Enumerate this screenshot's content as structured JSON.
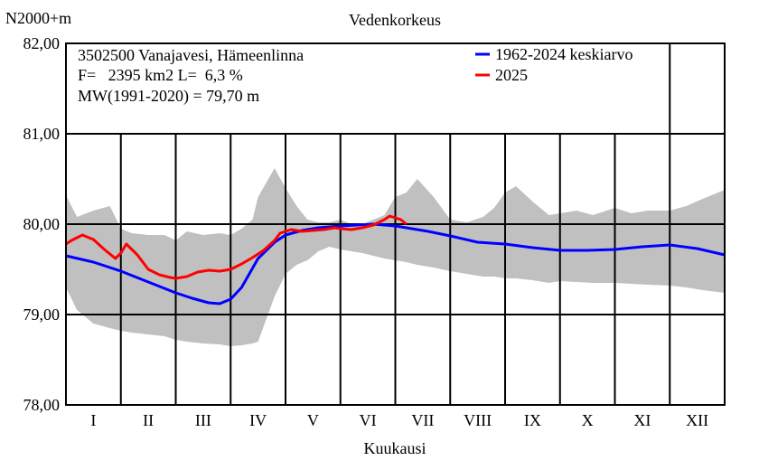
{
  "chart_data": {
    "type": "area",
    "title": "Vedenkorkeus",
    "ylabel": "N2000+m",
    "xlabel": "Kuukausi",
    "ylim": [
      78,
      82
    ],
    "yticks": [
      "78,00",
      "79,00",
      "80,00",
      "81,00",
      "82,00"
    ],
    "ytick_values": [
      78,
      79,
      80,
      81,
      82
    ],
    "categories": [
      "I",
      "II",
      "III",
      "IV",
      "V",
      "VI",
      "VII",
      "VIII",
      "IX",
      "X",
      "XI",
      "XII"
    ],
    "info_lines": [
      "3502500 Vanajavesi, Hämeenlinna",
      "F=   2395 km2 L=  6,3 %",
      "MW(1991-2020) = 79,70 m"
    ],
    "range_band": {
      "color": "#c0c0c0",
      "x": [
        0,
        0.2,
        0.5,
        0.8,
        1,
        1.2,
        1.5,
        1.8,
        2.0,
        2.2,
        2.5,
        2.8,
        3.0,
        3.2,
        3.4,
        3.5,
        3.8,
        4.0,
        4.2,
        4.4,
        4.6,
        4.8,
        5.0,
        5.2,
        5.4,
        5.6,
        5.8,
        6.0,
        6.2,
        6.4,
        6.7,
        7.0,
        7.3,
        7.6,
        7.8,
        8.0,
        8.2,
        8.5,
        8.8,
        9.0,
        9.3,
        9.6,
        10.0,
        10.3,
        10.6,
        11.0,
        11.3,
        11.6,
        12.0
      ],
      "max": [
        80.32,
        80.08,
        80.15,
        80.2,
        79.95,
        79.9,
        79.88,
        79.88,
        79.82,
        79.92,
        79.88,
        79.9,
        79.88,
        79.95,
        80.05,
        80.3,
        80.62,
        80.4,
        80.2,
        80.05,
        80.02,
        80.02,
        80.05,
        80.0,
        80.0,
        80.05,
        80.1,
        80.3,
        80.35,
        80.5,
        80.3,
        80.05,
        80.02,
        80.08,
        80.18,
        80.35,
        80.42,
        80.25,
        80.1,
        80.12,
        80.15,
        80.1,
        80.18,
        80.12,
        80.15,
        80.15,
        80.2,
        80.28,
        80.38
      ],
      "min": [
        79.3,
        79.05,
        78.9,
        78.85,
        78.82,
        78.8,
        78.78,
        78.76,
        78.72,
        78.7,
        78.68,
        78.67,
        78.65,
        78.66,
        78.68,
        78.7,
        79.2,
        79.45,
        79.55,
        79.6,
        79.7,
        79.75,
        79.72,
        79.7,
        79.68,
        79.65,
        79.62,
        79.6,
        79.58,
        79.55,
        79.52,
        79.48,
        79.45,
        79.42,
        79.42,
        79.4,
        79.4,
        79.38,
        79.35,
        79.37,
        79.36,
        79.35,
        79.35,
        79.34,
        79.33,
        79.32,
        79.3,
        79.27,
        79.24
      ]
    },
    "series": [
      {
        "name": "1962-2024 keskiarvo",
        "color": "#0000ff",
        "x": [
          0,
          0.5,
          1.0,
          1.5,
          2.0,
          2.3,
          2.6,
          2.8,
          3.0,
          3.2,
          3.5,
          3.8,
          4.0,
          4.3,
          4.6,
          5.0,
          5.3,
          5.6,
          6.0,
          6.3,
          6.6,
          7.0,
          7.5,
          8.0,
          8.5,
          9.0,
          9.5,
          10.0,
          10.5,
          11.0,
          11.5,
          12.0
        ],
        "values": [
          79.65,
          79.58,
          79.48,
          79.36,
          79.24,
          79.18,
          79.13,
          79.12,
          79.17,
          79.3,
          79.62,
          79.8,
          79.88,
          79.93,
          79.96,
          79.98,
          79.99,
          80.0,
          79.98,
          79.95,
          79.92,
          79.87,
          79.8,
          79.78,
          79.74,
          79.71,
          79.71,
          79.72,
          79.75,
          79.77,
          79.73,
          79.66
        ]
      },
      {
        "name": "2025",
        "color": "#ff0000",
        "x": [
          0,
          0.1,
          0.3,
          0.5,
          0.7,
          0.9,
          1.0,
          1.1,
          1.3,
          1.5,
          1.7,
          1.9,
          2.0,
          2.2,
          2.4,
          2.6,
          2.8,
          3.0,
          3.2,
          3.4,
          3.6,
          3.8,
          3.9,
          4.1,
          4.3,
          4.5,
          4.7,
          4.9,
          5.0,
          5.2,
          5.4,
          5.6,
          5.7,
          5.8,
          5.9,
          6.0,
          6.1,
          6.2
        ],
        "values": [
          79.78,
          79.82,
          79.88,
          79.83,
          79.72,
          79.62,
          79.68,
          79.78,
          79.66,
          79.5,
          79.44,
          79.41,
          79.4,
          79.42,
          79.47,
          79.49,
          79.48,
          79.5,
          79.56,
          79.63,
          79.71,
          79.82,
          79.9,
          79.94,
          79.92,
          79.93,
          79.94,
          79.96,
          79.95,
          79.94,
          79.96,
          79.99,
          80.02,
          80.05,
          80.09,
          80.07,
          80.05,
          80.0
        ]
      }
    ]
  }
}
